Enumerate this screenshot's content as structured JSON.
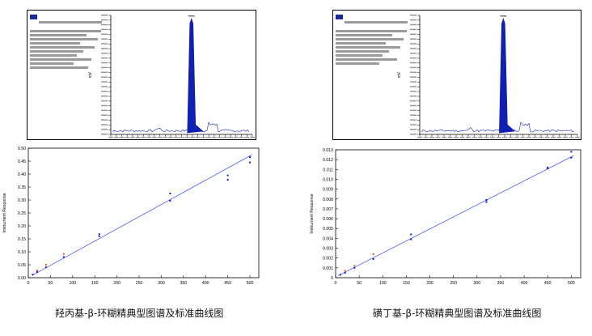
{
  "captions": [
    "羟丙基-β-环糊精典型图谱及标准曲线图",
    "磺丁基-β-环糊精典型图谱及标准曲线图"
  ],
  "colors": {
    "fit_line": "#4a5cff",
    "points_blue": "#1a1ad0",
    "points_red": "#e05a2a",
    "peak": "#1020b0"
  },
  "chart_data": [
    {
      "type": "line",
      "description_role": "chromatogram-left",
      "ylabel": "mV",
      "peak_x": 0.57,
      "noise": true
    },
    {
      "type": "line",
      "description_role": "chromatogram-right",
      "ylabel": "mV",
      "peak_x": 0.53,
      "noise": true
    },
    {
      "type": "scatter",
      "ylabel": "Instrument Response",
      "xlim": [
        0,
        520
      ],
      "ylim": [
        0,
        0.5
      ],
      "xticks": [
        0,
        50,
        100,
        150,
        200,
        250,
        300,
        350,
        400,
        450,
        500
      ],
      "yticks": [
        0,
        0.05,
        0.1,
        0.15,
        0.2,
        0.25,
        0.3,
        0.35,
        0.4,
        0.45,
        0.5
      ],
      "ytick_labels": [
        "0.00",
        "0.05",
        "0.10",
        "0.15",
        "0.20",
        "0.25",
        "0.30",
        "0.35",
        "0.40",
        "0.45",
        "0.50"
      ],
      "fit_line": [
        [
          10,
          0.01
        ],
        [
          505,
          0.475
        ]
      ],
      "points_blue": [
        [
          10,
          0.012
        ],
        [
          20,
          0.022
        ],
        [
          40,
          0.04
        ],
        [
          80,
          0.08
        ],
        [
          160,
          0.16
        ],
        [
          160,
          0.168
        ],
        [
          320,
          0.297
        ],
        [
          320,
          0.325
        ],
        [
          450,
          0.378
        ],
        [
          450,
          0.395
        ],
        [
          500,
          0.445
        ],
        [
          500,
          0.465
        ]
      ],
      "points_red": [
        [
          20,
          0.028
        ],
        [
          40,
          0.05
        ],
        [
          80,
          0.092
        ]
      ]
    },
    {
      "type": "scatter",
      "ylabel": "Instrument Response",
      "xlim": [
        0,
        520
      ],
      "ylim": [
        0,
        0.013
      ],
      "xticks": [
        0,
        50,
        100,
        150,
        200,
        250,
        300,
        350,
        400,
        450,
        500
      ],
      "yticks": [
        0,
        0.001,
        0.002,
        0.003,
        0.004,
        0.005,
        0.006,
        0.007,
        0.008,
        0.009,
        0.01,
        0.011,
        0.012,
        0.013
      ],
      "ytick_labels": [
        "0",
        "0.001",
        "0.002",
        "0.003",
        "0.004",
        "0.005",
        "0.006",
        "0.007",
        "0.008",
        "0.009",
        "0.010",
        "0.011",
        "0.012",
        "0.013"
      ],
      "fit_line": [
        [
          5,
          0.0002
        ],
        [
          505,
          0.0124
        ]
      ],
      "points_blue": [
        [
          10,
          0.0003
        ],
        [
          20,
          0.0005
        ],
        [
          40,
          0.001
        ],
        [
          80,
          0.0019
        ],
        [
          160,
          0.0039
        ],
        [
          160,
          0.0044
        ],
        [
          320,
          0.0077
        ],
        [
          320,
          0.0079
        ],
        [
          450,
          0.0111
        ],
        [
          450,
          0.0112
        ],
        [
          500,
          0.0122
        ],
        [
          500,
          0.0128
        ]
      ],
      "points_red": [
        [
          20,
          0.0007
        ],
        [
          40,
          0.0012
        ],
        [
          80,
          0.0024
        ]
      ]
    }
  ]
}
